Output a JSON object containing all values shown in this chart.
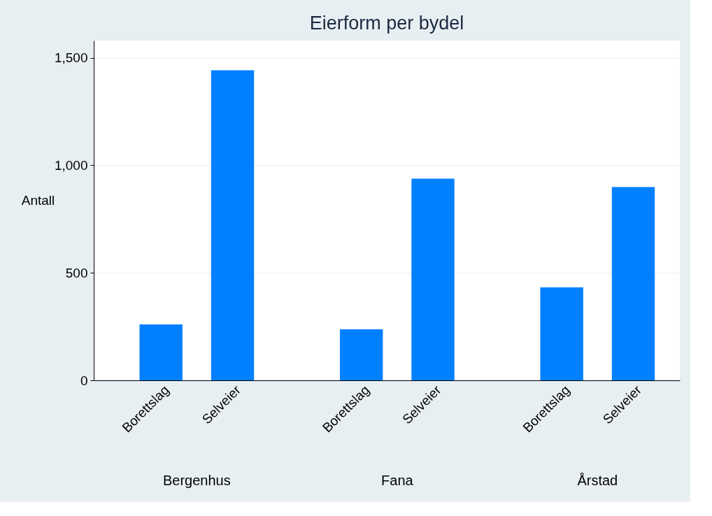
{
  "chart_data": {
    "type": "bar",
    "title": "Eierform  per bydel",
    "ylabel": "Antall",
    "categories": [
      "Borettslag",
      "Selveier",
      "Borettslag",
      "Selveier",
      "Borettslag",
      "Selveier"
    ],
    "values": [
      260,
      1442,
      237,
      938,
      432,
      899
    ],
    "color": "#0080ff",
    "ylim": [
      0,
      1580
    ],
    "yticks": [
      0,
      {
        "value": 500,
        "label": "500"
      },
      {
        "value": 1000,
        "label": "1,000"
      },
      {
        "value": 1500,
        "label": "1,500"
      }
    ],
    "grid": "y",
    "annotations": [
      "Bergenhus",
      "Fana",
      "Årstad"
    ]
  }
}
